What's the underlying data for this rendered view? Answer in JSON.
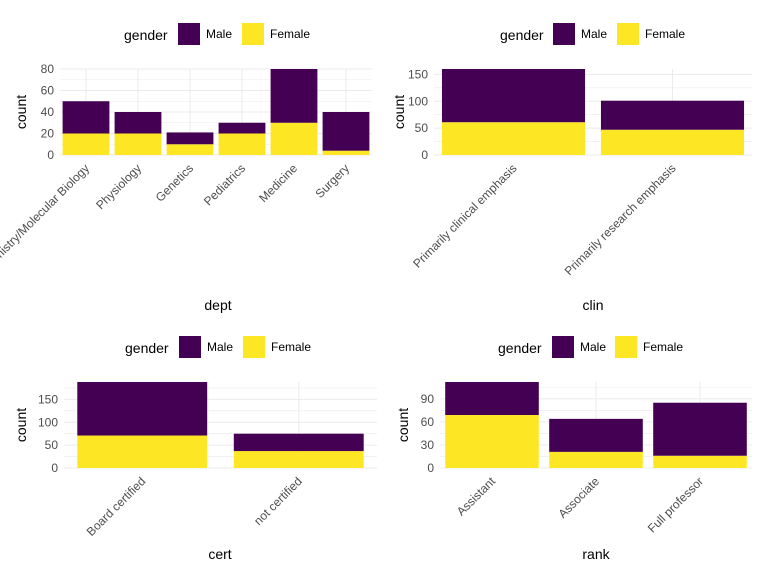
{
  "colors": {
    "male": "#440154",
    "female": "#FDE725",
    "grid": "#ebebeb",
    "tick_text": "#4d4d4d"
  },
  "chart_data": [
    {
      "type": "bar",
      "stacked": true,
      "legend": {
        "title": "gender",
        "position": "top",
        "entries": [
          "Male",
          "Female"
        ]
      },
      "xlabel": "dept",
      "ylabel": "count",
      "categories": [
        "Biochemistry/Molecular Biology",
        "Physiology",
        "Genetics",
        "Pediatrics",
        "Medicine",
        "Surgery"
      ],
      "series": [
        {
          "name": "Male",
          "values": [
            30,
            20,
            11,
            10,
            50,
            36
          ]
        },
        {
          "name": "Female",
          "values": [
            20,
            20,
            10,
            20,
            30,
            4
          ]
        }
      ],
      "ylim": [
        0,
        80
      ],
      "yticks": [
        0,
        20,
        40,
        60,
        80
      ],
      "grid": true
    },
    {
      "type": "bar",
      "stacked": true,
      "legend": {
        "title": "gender",
        "position": "top",
        "entries": [
          "Male",
          "Female"
        ]
      },
      "xlabel": "clin",
      "ylabel": "count",
      "categories": [
        "Primarily clinical emphasis",
        "Primarily research emphasis"
      ],
      "series": [
        {
          "name": "Male",
          "values": [
            99,
            54
          ]
        },
        {
          "name": "Female",
          "values": [
            61,
            47
          ]
        }
      ],
      "ylim": [
        0,
        160
      ],
      "yticks": [
        0,
        50,
        100,
        150
      ],
      "grid": true
    },
    {
      "type": "bar",
      "stacked": true,
      "legend": {
        "title": "gender",
        "position": "top",
        "entries": [
          "Male",
          "Female"
        ]
      },
      "xlabel": "cert",
      "ylabel": "count",
      "categories": [
        "Board certified",
        "not certified"
      ],
      "series": [
        {
          "name": "Male",
          "values": [
            117,
            38
          ]
        },
        {
          "name": "Female",
          "values": [
            71,
            37
          ]
        }
      ],
      "ylim": [
        0,
        188
      ],
      "yticks": [
        0,
        50,
        100,
        150
      ],
      "grid": true
    },
    {
      "type": "bar",
      "stacked": true,
      "legend": {
        "title": "gender",
        "position": "top",
        "entries": [
          "Male",
          "Female"
        ]
      },
      "xlabel": "rank",
      "ylabel": "count",
      "categories": [
        "Assistant",
        "Associate",
        "Full professor"
      ],
      "series": [
        {
          "name": "Male",
          "values": [
            43,
            43,
            69
          ]
        },
        {
          "name": "Female",
          "values": [
            69,
            21,
            16
          ]
        }
      ],
      "ylim": [
        0,
        112
      ],
      "yticks": [
        0,
        30,
        60,
        90
      ],
      "grid": true
    }
  ]
}
